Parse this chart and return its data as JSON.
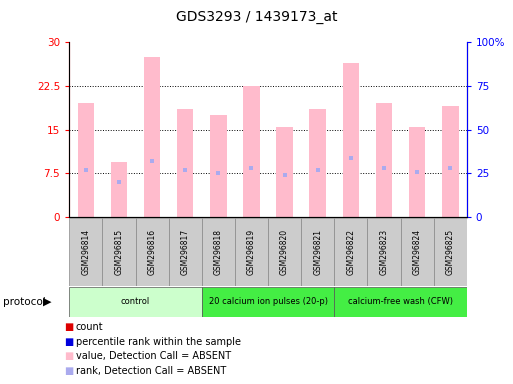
{
  "title": "GDS3293 / 1439173_at",
  "samples": [
    "GSM296814",
    "GSM296815",
    "GSM296816",
    "GSM296817",
    "GSM296818",
    "GSM296819",
    "GSM296820",
    "GSM296821",
    "GSM296822",
    "GSM296823",
    "GSM296824",
    "GSM296825"
  ],
  "values": [
    19.5,
    9.5,
    27.5,
    18.5,
    17.5,
    22.5,
    15.5,
    18.5,
    26.5,
    19.5,
    15.5,
    19.0
  ],
  "ranks": [
    27,
    20,
    32,
    27,
    25,
    28,
    24,
    27,
    34,
    28,
    26,
    28
  ],
  "bar_color": "#ffbbcc",
  "rank_color": "#aaaaee",
  "ylim_left": [
    0,
    30
  ],
  "ylim_right": [
    0,
    100
  ],
  "yticks_left": [
    0,
    7.5,
    15,
    22.5,
    30
  ],
  "yticks_right": [
    0,
    25,
    50,
    75,
    100
  ],
  "ytick_labels_left": [
    "0",
    "7.5",
    "15",
    "22.5",
    "30"
  ],
  "ytick_labels_right": [
    "0",
    "25",
    "50",
    "75",
    "100%"
  ],
  "bar_width": 0.5,
  "protocol_defs": [
    {
      "label": "control",
      "start": 0,
      "end": 4,
      "color": "#ccffcc"
    },
    {
      "label": "20 calcium ion pulses (20-p)",
      "start": 4,
      "end": 8,
      "color": "#44ee44"
    },
    {
      "label": "calcium-free wash (CFW)",
      "start": 8,
      "end": 12,
      "color": "#44ee44"
    }
  ],
  "legend_items": [
    {
      "color": "#dd0000",
      "label": "count"
    },
    {
      "color": "#0000dd",
      "label": "percentile rank within the sample"
    },
    {
      "color": "#ffbbcc",
      "label": "value, Detection Call = ABSENT"
    },
    {
      "color": "#aaaaee",
      "label": "rank, Detection Call = ABSENT"
    }
  ]
}
